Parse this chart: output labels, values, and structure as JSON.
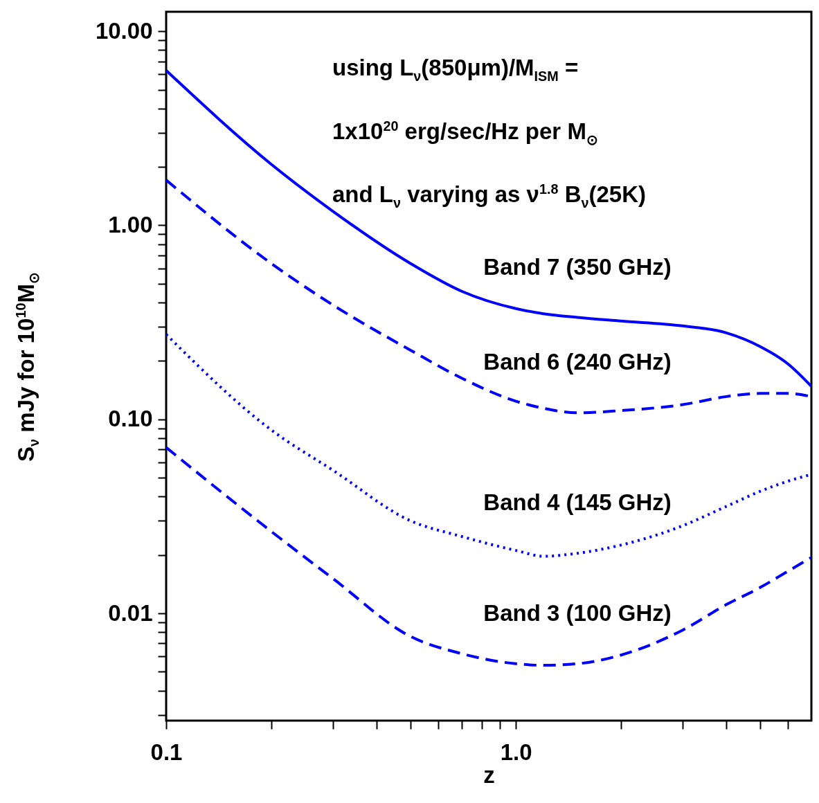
{
  "chart_data": {
    "type": "line",
    "xlabel": "z",
    "ylabel": "S$_{ν}$ mJy for 10$^{10}$M$_{⊙}$",
    "annotations": [
      "using L$_{ν}$(850μm)/M$_{ISM}$  =",
      "1x10$^{20}$ erg/sec/Hz per M$_{⊙}$",
      "and L$_{ν}$ varying as ν$^{1.8}$ B$_{ν}$(25K)"
    ],
    "x": [
      0.1,
      0.2,
      0.3,
      0.5,
      0.7,
      1,
      1.2,
      1.5,
      2,
      3,
      4,
      5,
      6,
      7
    ],
    "series": [
      {
        "name": "Band 7 (350 GHz)",
        "color": "#0000ff",
        "line_style": "solid",
        "values": [
          6.28,
          2.06,
          1.18,
          0.635,
          0.457,
          0.372,
          0.35,
          0.335,
          0.321,
          0.303,
          0.279,
          0.237,
          0.193,
          0.148
        ]
      },
      {
        "name": "Band 6 (240 GHz)",
        "color": "#0000ff",
        "line_style": "dashed",
        "values": [
          1.71,
          0.635,
          0.388,
          0.227,
          0.163,
          0.124,
          0.114,
          0.108,
          0.111,
          0.119,
          0.131,
          0.136,
          0.136,
          0.131
        ]
      },
      {
        "name": "Band 4 (145 GHz)",
        "color": "#0000ff",
        "line_style": "dotted",
        "values": [
          0.274,
          0.088,
          0.0546,
          0.03,
          0.0249,
          0.0211,
          0.0197,
          0.0204,
          0.0225,
          0.0283,
          0.0356,
          0.0426,
          0.048,
          0.052
        ]
      },
      {
        "name": "Band 3 (100 GHz)",
        "color": "#0000ff",
        "line_style": "dashed",
        "values": [
          0.0716,
          0.0264,
          0.0151,
          0.0076,
          0.0062,
          0.0055,
          0.0054,
          0.0055,
          0.0061,
          0.0082,
          0.0111,
          0.0136,
          0.0165,
          0.0194
        ]
      }
    ],
    "log": "xy",
    "grid": false,
    "xlim": [
      0.1,
      7
    ],
    "ylim": [
      0.0028,
      12.6
    ],
    "xticks": [
      {
        "value": 0.1,
        "label": "0.1"
      },
      {
        "value": 0.2,
        "label": null
      },
      {
        "value": 0.3,
        "label": null
      },
      {
        "value": 0.4,
        "label": null
      },
      {
        "value": 0.5,
        "label": null
      },
      {
        "value": 0.6,
        "label": null
      },
      {
        "value": 0.7,
        "label": null
      },
      {
        "value": 0.8,
        "label": null
      },
      {
        "value": 0.9,
        "label": null
      },
      {
        "value": 1,
        "label": "1.0"
      },
      {
        "value": 2,
        "label": null
      },
      {
        "value": 3,
        "label": null
      },
      {
        "value": 4,
        "label": null
      },
      {
        "value": 5,
        "label": null
      },
      {
        "value": 6,
        "label": null
      }
    ],
    "yticks": [
      {
        "value": 0.003,
        "label": null
      },
      {
        "value": 0.004,
        "label": null
      },
      {
        "value": 0.005,
        "label": null
      },
      {
        "value": 0.006,
        "label": null
      },
      {
        "value": 0.007,
        "label": null
      },
      {
        "value": 0.008,
        "label": null
      },
      {
        "value": 0.009,
        "label": null
      },
      {
        "value": 0.01,
        "label": "0.01"
      },
      {
        "value": 0.02,
        "label": null
      },
      {
        "value": 0.03,
        "label": null
      },
      {
        "value": 0.04,
        "label": null
      },
      {
        "value": 0.05,
        "label": null
      },
      {
        "value": 0.06,
        "label": null
      },
      {
        "value": 0.07,
        "label": null
      },
      {
        "value": 0.08,
        "label": null
      },
      {
        "value": 0.09,
        "label": null
      },
      {
        "value": 0.1,
        "label": "0.10"
      },
      {
        "value": 0.2,
        "label": null
      },
      {
        "value": 0.3,
        "label": null
      },
      {
        "value": 0.4,
        "label": null
      },
      {
        "value": 0.5,
        "label": null
      },
      {
        "value": 0.6,
        "label": null
      },
      {
        "value": 0.7,
        "label": null
      },
      {
        "value": 0.8,
        "label": null
      },
      {
        "value": 0.9,
        "label": null
      },
      {
        "value": 1,
        "label": "1.00"
      },
      {
        "value": 2,
        "label": null
      },
      {
        "value": 3,
        "label": null
      },
      {
        "value": 4,
        "label": null
      },
      {
        "value": 5,
        "label": null
      },
      {
        "value": 6,
        "label": null
      },
      {
        "value": 7,
        "label": null
      },
      {
        "value": 8,
        "label": null
      },
      {
        "value": 9,
        "label": null
      },
      {
        "value": 10,
        "label": "10.00"
      }
    ]
  }
}
